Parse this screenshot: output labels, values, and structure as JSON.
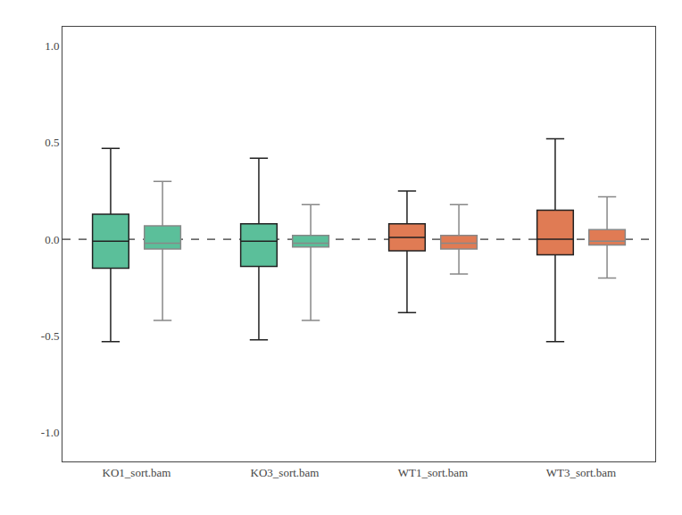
{
  "chart_data": {
    "type": "box",
    "categories": [
      "KO1_sort.bam",
      "KO3_sort.bam",
      "WT1_sort.bam",
      "WT3_sort.bam"
    ],
    "series": [
      {
        "color": "#222222",
        "colors": [
          "#5bbf9a",
          "#5bbf9a",
          "#e07b54",
          "#e07b54"
        ],
        "values": [
          {
            "q1": -0.15,
            "median": -0.01,
            "q3": 0.13,
            "whislo": -0.53,
            "whishi": 0.47
          },
          {
            "q1": -0.14,
            "median": -0.01,
            "q3": 0.08,
            "whislo": -0.52,
            "whishi": 0.42
          },
          {
            "q1": -0.06,
            "median": 0.01,
            "q3": 0.08,
            "whislo": -0.38,
            "whishi": 0.25
          },
          {
            "q1": -0.08,
            "median": 0.0,
            "q3": 0.15,
            "whislo": -0.53,
            "whishi": 0.52
          }
        ]
      },
      {
        "color": "#888888",
        "colors": [
          "#5bbf9a",
          "#5bbf9a",
          "#e07b54",
          "#e07b54"
        ],
        "values": [
          {
            "q1": -0.05,
            "median": -0.02,
            "q3": 0.07,
            "whislo": -0.42,
            "whishi": 0.3
          },
          {
            "q1": -0.04,
            "median": -0.02,
            "q3": 0.02,
            "whislo": -0.42,
            "whishi": 0.18
          },
          {
            "q1": -0.05,
            "median": -0.02,
            "q3": 0.02,
            "whislo": -0.18,
            "whishi": 0.18
          },
          {
            "q1": -0.03,
            "median": -0.01,
            "q3": 0.05,
            "whislo": -0.2,
            "whishi": 0.22
          }
        ]
      }
    ],
    "ylim": [
      -1.15,
      1.1
    ],
    "yticks": [
      {
        "value": -1.0,
        "label": "-1.0"
      },
      -0.5,
      {
        "value": 0.0,
        "label": "0.0"
      },
      0.5,
      {
        "value": 1.0,
        "label": "1.0"
      }
    ],
    "grid": false,
    "reference_line": 0.0
  }
}
